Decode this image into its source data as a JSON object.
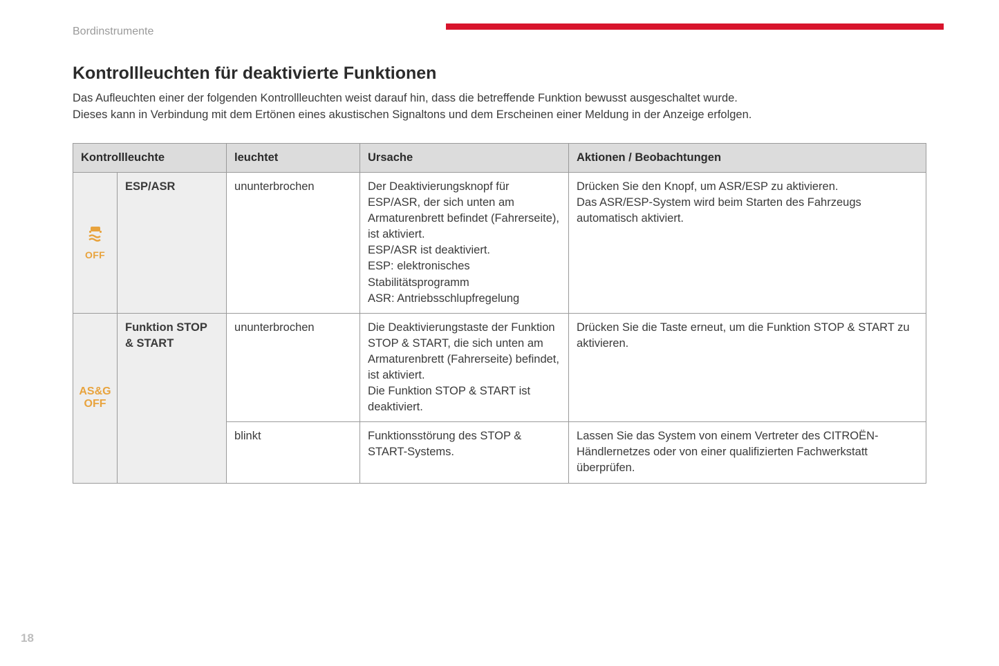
{
  "layout": {
    "accent_color": "#d8142c",
    "icon_color": "#e8a33d",
    "header_bg": "#dcdcdc",
    "sidebar_cell_bg": "#eeeeee",
    "border_color": "#9a9a9a"
  },
  "breadcrumb": "Bordinstrumente",
  "title": "Kontrollleuchten für deaktivierte Funktionen",
  "intro_line1": "Das Aufleuchten einer der folgenden Kontrollleuchten weist darauf hin, dass die betreffende Funktion bewusst ausgeschaltet wurde.",
  "intro_line2": "Dieses kann in Verbindung mit dem Ertönen eines akustischen Signaltons und dem Erscheinen einer Meldung in der Anzeige erfolgen.",
  "table": {
    "columns": [
      "Kontrollleuchte",
      "leuchtet",
      "Ursache",
      "Aktionen / Beobachtungen"
    ],
    "rows": [
      {
        "icon_label": "OFF",
        "name": "ESP/ASR",
        "entries": [
          {
            "leuchtet": "ununterbrochen",
            "ursache": "Der Deaktivierungsknopf für ESP/ASR, der sich unten am Armaturenbrett befindet (Fahrerseite), ist aktiviert.\nESP/ASR ist deaktiviert.\nESP: elektronisches Stabilitätsprogramm\nASR: Antriebsschlupfregelung",
            "aktionen": "Drücken Sie den Knopf, um ASR/ESP zu aktivieren.\nDas ASR/ESP-System wird beim Starten des Fahrzeugs automatisch aktiviert."
          }
        ]
      },
      {
        "icon_label": "AS&G\nOFF",
        "name": "Funktion STOP & START",
        "entries": [
          {
            "leuchtet": "ununterbrochen",
            "ursache": "Die Deaktivierungstaste der Funktion STOP & START, die sich unten am Armaturenbrett (Fahrerseite) befindet, ist aktiviert.\nDie Funktion STOP & START ist deaktiviert.",
            "aktionen": "Drücken Sie die Taste erneut, um die Funktion STOP & START zu aktivieren."
          },
          {
            "leuchtet": "blinkt",
            "ursache": "Funktionsstörung des STOP & START-Systems.",
            "aktionen": "Lassen Sie das System von einem Vertreter des CITROËN-Händlernetzes oder von einer qualifizierten Fachwerkstatt überprüfen."
          }
        ]
      }
    ]
  },
  "page_number": "18"
}
